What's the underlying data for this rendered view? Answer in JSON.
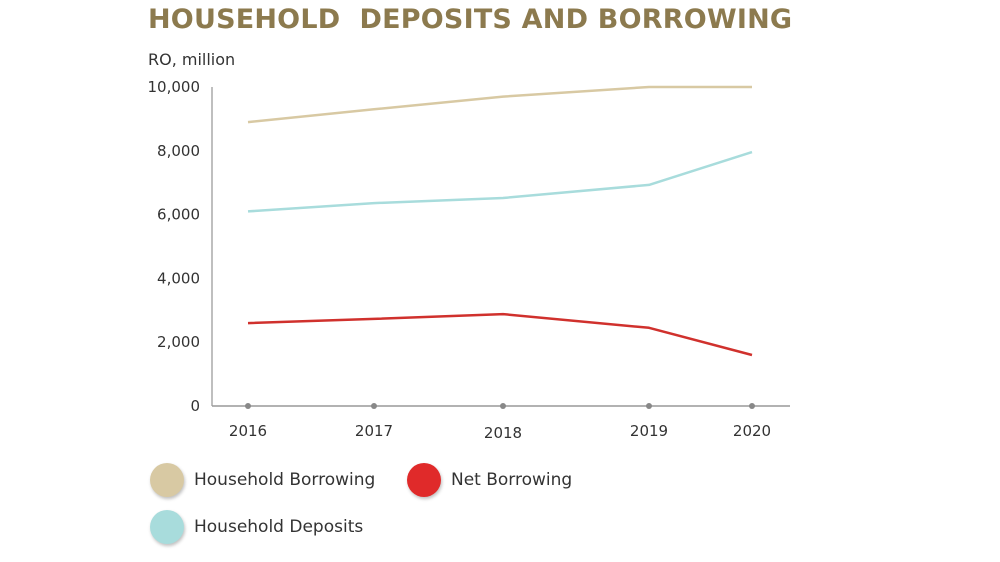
{
  "chart_data": {
    "type": "line",
    "title": "HOUSEHOLD  DEPOSITS AND BORROWING",
    "ylabel": "RO, million",
    "xlabel": "",
    "categories": [
      "2016",
      "2017",
      "2018",
      "2019",
      "2020"
    ],
    "ylim": [
      0,
      10000
    ],
    "yticks": [
      "0",
      "2,000",
      "4,000",
      "6,000",
      "8,000",
      "10,000"
    ],
    "ytick_values": [
      0,
      2000,
      4000,
      6000,
      8000,
      10000
    ],
    "grid": false,
    "legend_placement": "bottom-left",
    "series": [
      {
        "name": "Household Borrowing",
        "color": "#d8c9a3",
        "values": [
          8900,
          9300,
          9700,
          10000,
          10000
        ]
      },
      {
        "name": "Net Borrowing",
        "color": "#d0312d",
        "values": [
          2600,
          2730,
          2880,
          2450,
          1600
        ]
      },
      {
        "name": "Household Deposits",
        "color": "#a8dcdc",
        "values": [
          6100,
          6360,
          6520,
          6930,
          7960
        ]
      }
    ]
  }
}
